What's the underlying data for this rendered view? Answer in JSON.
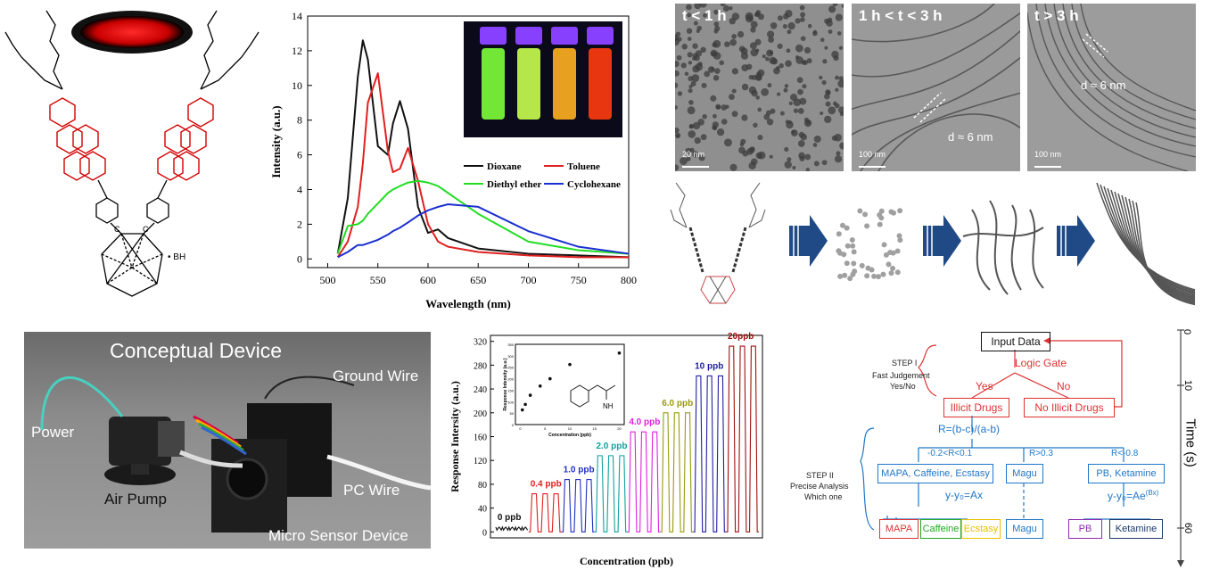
{
  "structure": {
    "bh_label": "• BH",
    "c_label": "C"
  },
  "emission_chart": {
    "ylabel": "Intensity (a.u.)",
    "xlabel": "Wavelength (nm)",
    "xticks": [
      "500",
      "550",
      "600",
      "650",
      "700",
      "750",
      "800"
    ],
    "yticks": [
      "0",
      "2",
      "4",
      "6",
      "8",
      "10",
      "12",
      "14"
    ],
    "legend": [
      "Dioxane",
      "Toluene",
      "Diethyl ether",
      "Cyclohexane"
    ],
    "colors": {
      "Dioxane": "#111111",
      "Toluene": "#e02020",
      "Diethyl ether": "#22dd22",
      "Cyclohexane": "#1a2fd0"
    }
  },
  "chart_data": [
    {
      "type": "line",
      "xlabel": "Wavelength (nm)",
      "ylabel": "Intensity (a.u.)",
      "xlim": [
        480,
        800
      ],
      "ylim": [
        -0.5,
        14
      ],
      "x": [
        510,
        520,
        530,
        535,
        540,
        550,
        560,
        565,
        572,
        580,
        590,
        600,
        610,
        620,
        650,
        700,
        750,
        800
      ],
      "series": [
        {
          "name": "Dioxane",
          "values": [
            0.3,
            3.5,
            10.5,
            12.6,
            11.5,
            6.5,
            6.0,
            7.8,
            9.1,
            7.5,
            3.0,
            1.5,
            1.7,
            1.2,
            0.6,
            0.3,
            0.2,
            0.1
          ]
        },
        {
          "name": "Toluene",
          "values": [
            0.1,
            1.0,
            3.0,
            5.5,
            9.0,
            10.7,
            6.2,
            5.0,
            5.2,
            6.4,
            4.5,
            2.0,
            1.0,
            0.7,
            0.4,
            0.2,
            0.1,
            0.1
          ]
        },
        {
          "name": "Diethyl ether",
          "values": [
            0.3,
            1.9,
            2.0,
            2.2,
            2.6,
            3.2,
            3.8,
            4.0,
            4.2,
            4.4,
            4.5,
            4.4,
            4.2,
            3.8,
            2.6,
            1.0,
            0.5,
            0.3
          ]
        },
        {
          "name": "Cyclohexane",
          "values": [
            0.1,
            0.4,
            0.8,
            0.8,
            0.9,
            1.1,
            1.4,
            1.6,
            1.8,
            2.1,
            2.5,
            2.8,
            3.0,
            3.15,
            3.0,
            1.6,
            0.7,
            0.3
          ]
        }
      ]
    },
    {
      "type": "line",
      "xlabel": "Concentration (ppb)",
      "ylabel": "Response Intersity (a.u.)",
      "ylim": [
        -10,
        330
      ],
      "groups": [
        {
          "label": "0 ppb",
          "peak": 8
        },
        {
          "label": "0.4 ppb",
          "peak": 64
        },
        {
          "label": "1.0 ppb",
          "peak": 88
        },
        {
          "label": "2.0 ppb",
          "peak": 128
        },
        {
          "label": "4.0 ppb",
          "peak": 168
        },
        {
          "label": "6.0 ppb",
          "peak": 200
        },
        {
          "label": "10 ppb",
          "peak": 262
        },
        {
          "label": "20ppb",
          "peak": 312
        }
      ]
    },
    {
      "type": "scatter",
      "title": "",
      "xlabel": "Concentration (ppb)",
      "ylabel": "Response Intensity (a.u.)",
      "x": [
        0.4,
        1,
        2,
        4,
        6,
        10,
        20
      ],
      "y": [
        64,
        88,
        128,
        168,
        200,
        262,
        312
      ]
    }
  ],
  "emission_inset": {
    "vial_colors": [
      "#7dff3a",
      "#c8ff50",
      "#ffb020",
      "#ff3b10"
    ]
  },
  "tem": {
    "labels": [
      "t < 1 h",
      "1 h < t < 3 h",
      "t > 3 h"
    ],
    "scalebars": [
      "20 nm",
      "100 nm",
      "100 nm"
    ],
    "d_label": "d ≈ 6 nm"
  },
  "sensor_chart": {
    "ylabel": "Response Intersity (a.u.)",
    "xlabel": "Concentration (ppb)",
    "yticks": [
      "0",
      "40",
      "80",
      "120",
      "160",
      "200",
      "240",
      "280",
      "320"
    ],
    "group_colors": [
      "#111111",
      "#e02020",
      "#2030c0",
      "#12a0a0",
      "#e020e0",
      "#9a9a10",
      "#2020a0",
      "#a01010"
    ],
    "inset_ylabel": "Response Intensity (a.u.)",
    "inset_xlabel": "Concentration (ppb)",
    "inset_yticks": [
      "0",
      "50",
      "100",
      "150",
      "200",
      "250",
      "300",
      "350"
    ],
    "inset_xticks": [
      "0",
      "5",
      "10",
      "15",
      "20"
    ],
    "molecule_label": "NH"
  },
  "device_photo": {
    "title": "Conceptual Device",
    "labels": {
      "power": "Power",
      "ground": "Ground Wire",
      "pump": "Air Pump",
      "pc": "PC Wire",
      "sensor": "Micro Sensor Device"
    }
  },
  "flowchart": {
    "input": "Input Data",
    "logic_gate": "Logic Gate",
    "yes": "Yes",
    "no": "No",
    "illicit": "Illicit Drugs",
    "no_illicit": "No Illicit Drugs",
    "step1_title": "STEP I",
    "step1_sub1": "Fast Judgement",
    "step1_sub2": "Yes/No",
    "step2_title": "STEP II",
    "step2_sub1": "Precise Analysis",
    "step2_sub2": "Which one",
    "r_formula": "R=(b-c)/(a-b)",
    "cond1": "-0.2<R<0.1",
    "cond2": "R>0.3",
    "cond3": "R<-0.8",
    "group1": "MAPA, Caffeine, Ecstasy",
    "group2": "Magu",
    "group3": "PB, Ketamine",
    "eq1": "y-y₀=Ax",
    "eq2_base": "y-y₀=Ae",
    "eq2_sup": "(Bx)",
    "leaves": [
      "MAPA",
      "Caffeine",
      "Ecstasy",
      "Magu",
      "PB",
      "Ketamine"
    ],
    "leaf_colors": [
      "#d33",
      "#2a2",
      "#e8c000",
      "#1f77c8",
      "#8a2bb0",
      "#1d3a6a"
    ],
    "time_label": "Time (s)",
    "time_ticks": [
      "0",
      "10",
      "60"
    ]
  }
}
